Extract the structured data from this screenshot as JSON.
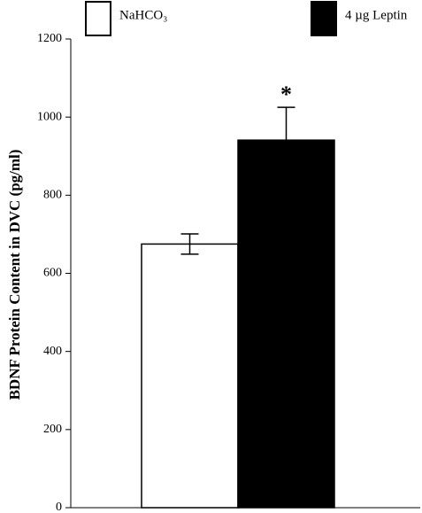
{
  "chart_data": {
    "type": "bar",
    "y_label": "BDNF Protein Content in DVC (pg/ml)",
    "series": [
      {
        "name": "NaHCO₃",
        "color": "#ffffff",
        "values": [
          675
        ],
        "errors": [
          26
        ]
      },
      {
        "name": "4 µg Leptin",
        "color": "#000000",
        "values": [
          941
        ],
        "errors": [
          84
        ]
      }
    ],
    "annotations": [
      "*"
    ],
    "ylim": [
      0,
      1200
    ],
    "yticks": [
      0,
      200,
      400,
      600,
      800,
      1000,
      1200
    ]
  }
}
